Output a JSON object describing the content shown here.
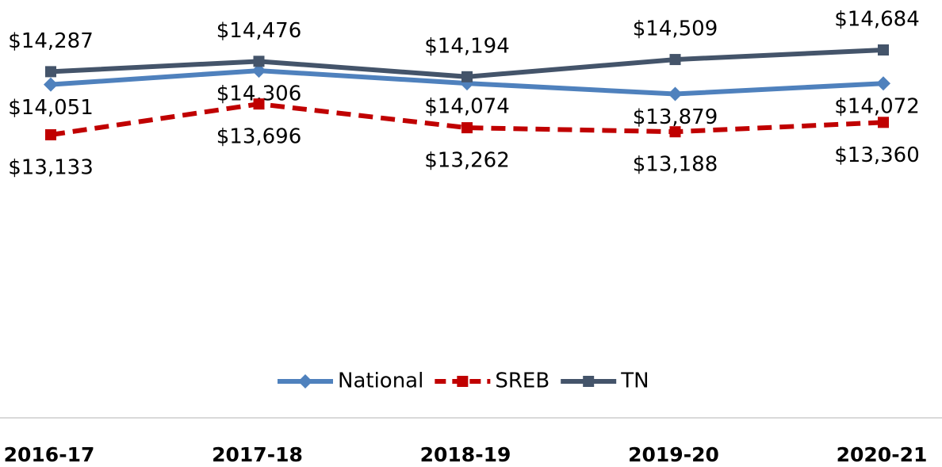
{
  "chart_data": {
    "type": "line",
    "categories": [
      "2016-17",
      "2017-18",
      "2018-19",
      "2019-20",
      "2020-21"
    ],
    "series": [
      {
        "name": "National",
        "color": "#4f81bd",
        "marker": "diamond",
        "dash": "solid",
        "values": [
          14051,
          14306,
          14074,
          13879,
          14072
        ],
        "value_labels": [
          "$14,051",
          "$14,306",
          "$14,074",
          "$13,879",
          "$14,072"
        ]
      },
      {
        "name": "SREB",
        "color": "#c00000",
        "marker": "square",
        "dash": "dashed",
        "values": [
          13133,
          13696,
          13262,
          13188,
          13360
        ],
        "value_labels": [
          "$13,133",
          "$13,696",
          "$13,262",
          "$13,188",
          "$13,360"
        ]
      },
      {
        "name": "TN",
        "color": "#44546a",
        "marker": "square",
        "dash": "solid",
        "values": [
          14287,
          14476,
          14194,
          14509,
          14684
        ],
        "value_labels": [
          "$14,287",
          "$14,476",
          "$14,194",
          "$14,509",
          "$14,684"
        ]
      }
    ],
    "legend": "bottom"
  }
}
